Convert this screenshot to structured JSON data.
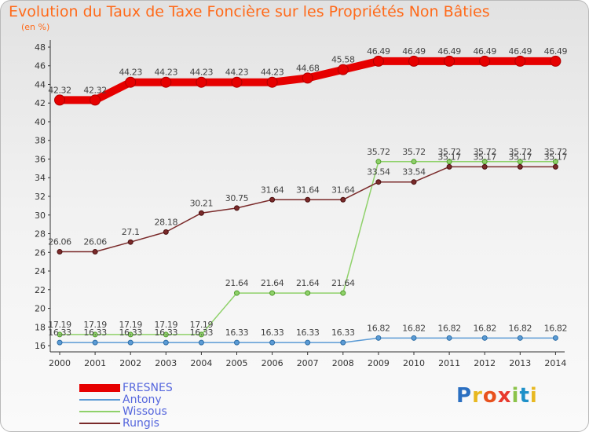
{
  "title": "Evolution du Taux de Taxe Foncière sur les Propriétés Non Bâties",
  "unit": "(en %)",
  "logo": {
    "text": "Proxiti",
    "colors": [
      "#2b6fc1",
      "#e8b820",
      "#e8521e",
      "#e83a2e",
      "#8bc34a",
      "#1e90c8",
      "#e8b820"
    ]
  },
  "chart_data": {
    "type": "line",
    "title": "Evolution du Taux de Taxe Foncière sur les Propriétés Non Bâties",
    "ylabel": "(en %)",
    "x": [
      "2000",
      "2001",
      "2002",
      "2003",
      "2004",
      "2005",
      "2006",
      "2007",
      "2008",
      "2009",
      "2010",
      "2011",
      "2012",
      "2013",
      "2014"
    ],
    "y_ticks": [
      "16",
      "18",
      "20",
      "22",
      "24",
      "26",
      "28",
      "30",
      "32",
      "34",
      "36",
      "38",
      "40",
      "42",
      "44",
      "46",
      "48"
    ],
    "ylim": [
      15.5,
      48.5
    ],
    "grid": false,
    "legend": "bottom-left",
    "series": [
      {
        "name": "FRESNES",
        "color": "#e60000",
        "values": [
          42.32,
          42.32,
          44.23,
          44.23,
          44.23,
          44.23,
          44.23,
          44.68,
          45.58,
          46.49,
          46.49,
          46.49,
          46.49,
          46.49,
          46.49
        ],
        "labels": [
          "42.32",
          "42.32",
          "44.23",
          "44.23",
          "44.23",
          "44.23",
          "44.23",
          "44.68",
          "45.58",
          "46.49",
          "46.49",
          "46.49",
          "46.49",
          "46.49",
          "46.49"
        ]
      },
      {
        "name": "Antony",
        "color": "#5b9bd5",
        "values": [
          16.33,
          16.33,
          16.33,
          16.33,
          16.33,
          16.33,
          16.33,
          16.33,
          16.33,
          16.82,
          16.82,
          16.82,
          16.82,
          16.82,
          16.82
        ],
        "labels": [
          "16.33",
          "16.33",
          "16.33",
          "16.33",
          "16.33",
          "16.33",
          "16.33",
          "16.33",
          "16.33",
          "16.82",
          "16.82",
          "16.82",
          "16.82",
          "16.82",
          "16.82"
        ]
      },
      {
        "name": "Wissous",
        "color": "#8fd16a",
        "values": [
          17.19,
          17.19,
          17.19,
          17.19,
          17.19,
          21.64,
          21.64,
          21.64,
          21.64,
          35.72,
          35.72,
          35.72,
          35.72,
          35.72,
          35.72
        ],
        "labels": [
          "17.19",
          "17.19",
          "17.19",
          "17.19",
          "17.19",
          "21.64",
          "21.64",
          "21.64",
          "21.64",
          "35.72",
          "35.72",
          "35.72",
          "35.72",
          "35.72",
          "35.72"
        ]
      },
      {
        "name": "Rungis",
        "color": "#7a2a2a",
        "values": [
          26.06,
          26.06,
          27.1,
          28.18,
          30.21,
          30.75,
          31.64,
          31.64,
          31.64,
          33.54,
          33.54,
          35.17,
          35.17,
          35.17,
          35.17
        ],
        "labels": [
          "26.06",
          "26.06",
          "27.1",
          "28.18",
          "30.21",
          "30.75",
          "31.64",
          "31.64",
          "31.64",
          "33.54",
          "33.54",
          "35.17",
          "35.17",
          "35.17",
          "35.17"
        ]
      }
    ]
  }
}
